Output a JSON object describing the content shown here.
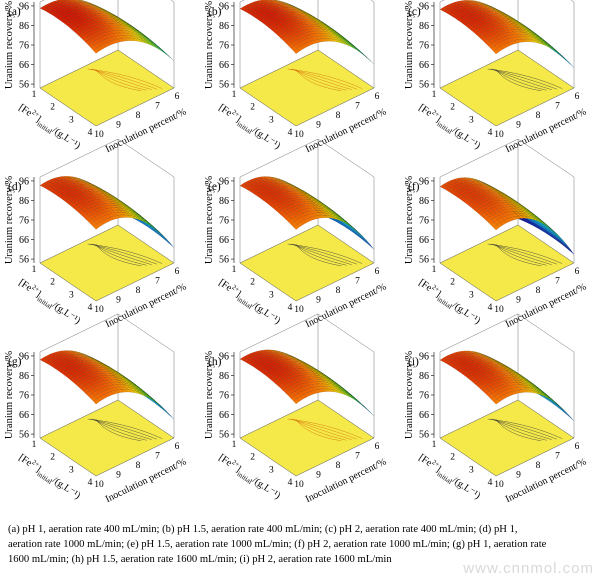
{
  "figure": {
    "z_label": "Uranium recovery/%",
    "fe_label_main": "[Fe",
    "fe_label_sup": "2+",
    "fe_label_mid": "]",
    "fe_label_sub": "initial",
    "fe_label_unit": "/(g.L⁻¹)",
    "x_label": "Inoculation percent/%",
    "z_ticks": [
      "56",
      "66",
      "76",
      "86",
      "96"
    ],
    "fe_ticks": [
      "1",
      "2",
      "3",
      "4"
    ],
    "inoc_ticks": [
      "10",
      "9",
      "8",
      "7",
      "6"
    ],
    "colors": {
      "floor": "#f5e94a",
      "grid_line": "#000000"
    }
  },
  "panels": [
    {
      "id": "a",
      "label": "(a)",
      "pH": 1,
      "aeration": 400,
      "variant": 0.8
    },
    {
      "id": "b",
      "label": "(b)",
      "pH": 1.5,
      "aeration": 400,
      "variant": 0.7
    },
    {
      "id": "c",
      "label": "(c)",
      "pH": 2,
      "aeration": 400,
      "variant": 0.6
    },
    {
      "id": "d",
      "label": "(d)",
      "pH": 1,
      "aeration": 1000,
      "variant": 0.45
    },
    {
      "id": "e",
      "label": "(e)",
      "pH": 1.5,
      "aeration": 1000,
      "variant": 0.4
    },
    {
      "id": "f",
      "label": "(f)",
      "pH": 2,
      "aeration": 1000,
      "variant": 0.25
    },
    {
      "id": "g",
      "label": "(g)",
      "pH": 1,
      "aeration": 1600,
      "variant": 0.55
    },
    {
      "id": "h",
      "label": "(h)",
      "pH": 1.5,
      "aeration": 1600,
      "variant": 0.65
    },
    {
      "id": "i",
      "label": "(i)",
      "pH": 2,
      "aeration": 1600,
      "variant": 0.5
    }
  ],
  "caption": {
    "line1": "(a) pH 1, aeration rate 400 mL/min; (b) pH 1.5, aeration rate 400 mL/min; (c) pH 2, aeration rate 400 mL/min; (d) pH 1,",
    "line2": "aeration rate 1000 mL/min; (e) pH 1.5, aeration rate 1000 mL/min; (f) pH 2, aeration rate 1000 mL/min; (g) pH 1, aeration rate",
    "line3": "1600 mL/min; (h) pH 1.5, aeration rate 1600 mL/min; (i) pH 2, aeration rate 1600 mL/min"
  },
  "watermark": "www.cnnmol.com"
}
